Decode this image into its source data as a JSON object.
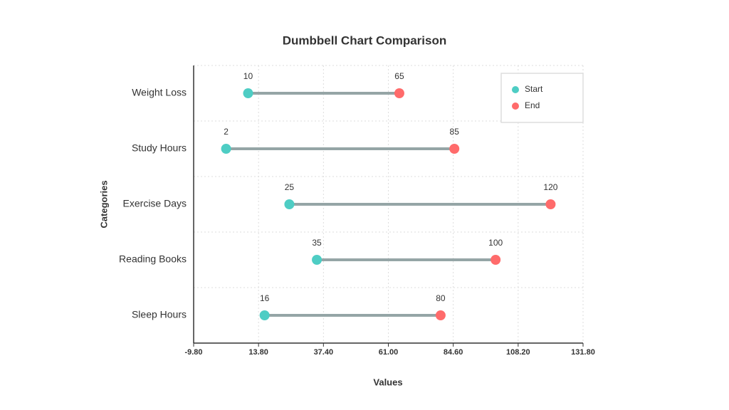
{
  "chart_data": {
    "type": "dumbbell",
    "title": "Dumbbell Chart Comparison",
    "x_label": "Values",
    "y_label": "Categories",
    "categories": [
      "Weight Loss",
      "Study Hours",
      "Exercise Days",
      "Reading Books",
      "Sleep Hours"
    ],
    "series": [
      {
        "name": "Start",
        "color": "#4ecdc4",
        "values": [
          10,
          2,
          25,
          35,
          16
        ]
      },
      {
        "name": "End",
        "color": "#ff6b6b",
        "values": [
          65,
          85,
          120,
          100,
          80
        ]
      }
    ],
    "connector_color": "#95a5a6",
    "xlim": [
      -9.8,
      131.8
    ],
    "xticks": [
      {
        "value": -9.8,
        "label": "-9.80"
      },
      {
        "value": 13.8,
        "label": "13.80"
      },
      {
        "value": 37.4,
        "label": "37.40"
      },
      {
        "value": 61,
        "label": "61.00"
      },
      {
        "value": 84.6,
        "label": "84.60"
      },
      {
        "value": 108.2,
        "label": "108.20"
      },
      {
        "value": 131.8,
        "label": "131.80"
      }
    ],
    "grid": true,
    "legend_position": "upper right"
  }
}
